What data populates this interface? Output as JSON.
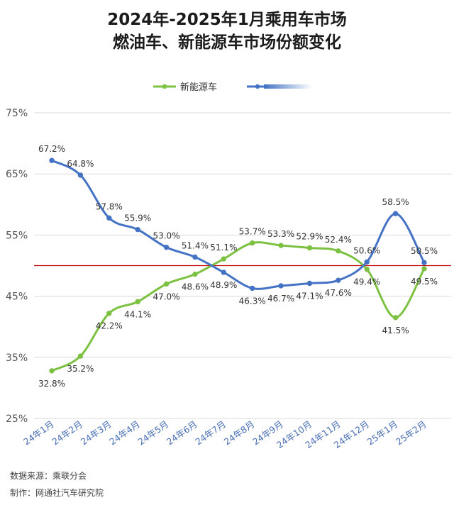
{
  "title_line1": "2024年-2025年1月乘用车市场",
  "title_line2": "燃油车、新能源车市场份额变化",
  "footer": {
    "source": "数据来源：乘联分会",
    "maker": "制作：网通社汽车研究院"
  },
  "colors": {
    "green": "#7cc142",
    "blue": "#4472c4",
    "reference": "#c00000",
    "grid": "#d9d9d9",
    "tick_text": "#555555",
    "x_tick_text": "#4a6fb5"
  },
  "chart_data": {
    "type": "line",
    "title": "2024年-2025年1月乘用车市场 燃油车、新能源车市场份额变化",
    "categories": [
      "24年1月",
      "24年2月",
      "24年3月",
      "24年4月",
      "24年5月",
      "24年6月",
      "24年7月",
      "24年8月",
      "24年9月",
      "24年10月",
      "24年11月",
      "24年12月",
      "25年1月",
      "25年2月"
    ],
    "series": [
      {
        "name": "新能源车",
        "color": "#7cc142",
        "values": [
          32.8,
          35.2,
          42.2,
          44.1,
          47.0,
          48.6,
          51.1,
          53.7,
          53.3,
          52.9,
          52.4,
          49.4,
          41.5,
          49.5
        ],
        "labels": [
          "32.8%",
          "35.2%",
          "42.2%",
          "44.1%",
          "47.0%",
          "48.6%",
          "51.1%",
          "53.7%",
          "53.3%",
          "52.9%",
          "52.4%",
          "49.4%",
          "41.5%",
          "49.5%"
        ]
      },
      {
        "name": "",
        "color": "#4472c4",
        "values": [
          67.2,
          64.8,
          57.8,
          55.9,
          53.0,
          51.4,
          48.9,
          46.3,
          46.7,
          47.1,
          47.6,
          50.6,
          58.5,
          50.5
        ],
        "labels": [
          "67.2%",
          "64.8%",
          "57.8%",
          "55.9%",
          "53.0%",
          "51.4%",
          "48.9%",
          "46.3%",
          "46.7%",
          "47.1%",
          "47.6%",
          "50.6%",
          "58.5%",
          "50.5%"
        ]
      }
    ],
    "yticks": [
      25,
      35,
      45,
      55,
      65,
      75
    ],
    "ytick_labels": [
      "25%",
      "35%",
      "45%",
      "55%",
      "65%",
      "75%"
    ],
    "ylim": [
      25,
      75
    ],
    "reference_line": 50,
    "grid": true,
    "legend_position": "top-center",
    "xlabel": "",
    "ylabel": ""
  }
}
